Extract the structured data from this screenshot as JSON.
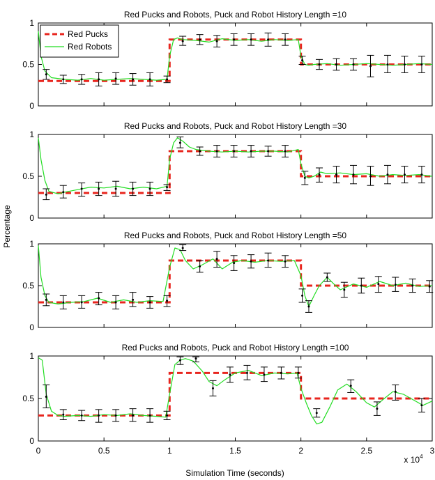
{
  "figure": {
    "ylabel": "Percentage",
    "xlabel": "Simulation Time (seconds)",
    "x_multiplier": "x 10",
    "x_multiplier_exp": "4"
  },
  "legend": {
    "placement": "top-left of first panel",
    "entries": [
      {
        "label": "Red Pucks",
        "color": "#e8251e",
        "style": "dashed"
      },
      {
        "label": "Red Robots",
        "color": "#22dd22",
        "style": "solid"
      }
    ]
  },
  "colors": {
    "pucks": "#e8251e",
    "robots": "#22dd22",
    "errorbar": "#000000"
  },
  "chart_data": [
    {
      "type": "line",
      "title": "Red Pucks and Robots, Puck and Robot History Length =10",
      "xlim": [
        0,
        3
      ],
      "ylim": [
        0,
        1
      ],
      "xticks": [
        0,
        0.5,
        1,
        1.5,
        2,
        2.5,
        3
      ],
      "xtick_labels": [
        "0",
        "0.5",
        "1",
        "1.5",
        "2",
        "2.5",
        "3"
      ],
      "yticks": [
        0,
        0.5,
        1
      ],
      "ytick_labels": [
        "0",
        "0.5",
        "1"
      ],
      "grid": false,
      "pucks": {
        "name": "Red Pucks",
        "x": [
          0,
          1,
          1,
          2,
          2,
          3
        ],
        "y": [
          0.3,
          0.3,
          0.8,
          0.8,
          0.5,
          0.5
        ]
      },
      "robots": {
        "name": "Red Robots",
        "x": [
          0,
          0.02,
          0.05,
          0.1,
          0.2,
          0.3,
          0.4,
          0.5,
          0.6,
          0.7,
          0.8,
          0.9,
          0.98,
          1.0,
          1.03,
          1.06,
          1.1,
          1.2,
          1.3,
          1.4,
          1.5,
          1.6,
          1.7,
          1.8,
          1.9,
          1.98,
          2.0,
          2.03,
          2.06,
          2.1,
          2.2,
          2.3,
          2.4,
          2.5,
          2.6,
          2.7,
          2.8,
          2.9,
          3.0
        ],
        "y": [
          0.9,
          0.6,
          0.42,
          0.34,
          0.32,
          0.31,
          0.33,
          0.31,
          0.32,
          0.33,
          0.32,
          0.31,
          0.32,
          0.6,
          0.8,
          0.82,
          0.8,
          0.79,
          0.77,
          0.81,
          0.79,
          0.8,
          0.78,
          0.8,
          0.79,
          0.8,
          0.6,
          0.5,
          0.49,
          0.5,
          0.51,
          0.49,
          0.5,
          0.51,
          0.5,
          0.49,
          0.5,
          0.51,
          0.5
        ]
      },
      "errorbars": [
        {
          "x": 0.06,
          "y": 0.38,
          "lo": 0.32,
          "hi": 0.44
        },
        {
          "x": 0.19,
          "y": 0.32,
          "lo": 0.27,
          "hi": 0.37
        },
        {
          "x": 0.33,
          "y": 0.32,
          "lo": 0.26,
          "hi": 0.38
        },
        {
          "x": 0.46,
          "y": 0.32,
          "lo": 0.24,
          "hi": 0.4
        },
        {
          "x": 0.59,
          "y": 0.33,
          "lo": 0.26,
          "hi": 0.4
        },
        {
          "x": 0.72,
          "y": 0.32,
          "lo": 0.25,
          "hi": 0.39
        },
        {
          "x": 0.85,
          "y": 0.32,
          "lo": 0.24,
          "hi": 0.4
        },
        {
          "x": 0.98,
          "y": 0.32,
          "lo": 0.28,
          "hi": 0.36
        },
        {
          "x": 1.1,
          "y": 0.78,
          "lo": 0.73,
          "hi": 0.84
        },
        {
          "x": 1.23,
          "y": 0.8,
          "lo": 0.74,
          "hi": 0.86
        },
        {
          "x": 1.36,
          "y": 0.78,
          "lo": 0.71,
          "hi": 0.85
        },
        {
          "x": 1.49,
          "y": 0.8,
          "lo": 0.73,
          "hi": 0.87
        },
        {
          "x": 1.62,
          "y": 0.8,
          "lo": 0.73,
          "hi": 0.87
        },
        {
          "x": 1.75,
          "y": 0.8,
          "lo": 0.72,
          "hi": 0.88
        },
        {
          "x": 1.88,
          "y": 0.8,
          "lo": 0.73,
          "hi": 0.87
        },
        {
          "x": 2.01,
          "y": 0.55,
          "lo": 0.5,
          "hi": 0.6
        },
        {
          "x": 2.14,
          "y": 0.5,
          "lo": 0.44,
          "hi": 0.56
        },
        {
          "x": 2.27,
          "y": 0.5,
          "lo": 0.43,
          "hi": 0.57
        },
        {
          "x": 2.4,
          "y": 0.5,
          "lo": 0.43,
          "hi": 0.57
        },
        {
          "x": 2.53,
          "y": 0.48,
          "lo": 0.35,
          "hi": 0.61
        },
        {
          "x": 2.66,
          "y": 0.5,
          "lo": 0.4,
          "hi": 0.61
        },
        {
          "x": 2.79,
          "y": 0.5,
          "lo": 0.4,
          "hi": 0.6
        },
        {
          "x": 2.92,
          "y": 0.5,
          "lo": 0.4,
          "hi": 0.6
        }
      ]
    },
    {
      "type": "line",
      "title": "Red Pucks and Robots, Puck and Robot History Length =30",
      "xlim": [
        0,
        3
      ],
      "ylim": [
        0,
        1
      ],
      "xticks": [
        0,
        0.5,
        1,
        1.5,
        2,
        2.5,
        3
      ],
      "xtick_labels": [
        "0",
        "0.5",
        "1",
        "1.5",
        "2",
        "2.5",
        "3"
      ],
      "yticks": [
        0,
        0.5,
        1
      ],
      "ytick_labels": [
        "0",
        "0.5",
        "1"
      ],
      "grid": false,
      "pucks": {
        "name": "Red Pucks",
        "x": [
          0,
          1,
          1,
          2,
          2,
          3
        ],
        "y": [
          0.3,
          0.3,
          0.8,
          0.8,
          0.5,
          0.5
        ]
      },
      "robots": {
        "name": "Red Robots",
        "x": [
          0,
          0.02,
          0.05,
          0.08,
          0.15,
          0.2,
          0.3,
          0.4,
          0.5,
          0.6,
          0.7,
          0.8,
          0.9,
          0.98,
          1.0,
          1.03,
          1.06,
          1.1,
          1.15,
          1.2,
          1.3,
          1.4,
          1.5,
          1.6,
          1.7,
          1.8,
          1.9,
          1.98,
          2.0,
          2.03,
          2.06,
          2.1,
          2.15,
          2.2,
          2.3,
          2.4,
          2.5,
          2.6,
          2.7,
          2.8,
          2.9,
          3.0
        ],
        "y": [
          0.96,
          0.7,
          0.45,
          0.32,
          0.29,
          0.31,
          0.34,
          0.37,
          0.36,
          0.38,
          0.35,
          0.37,
          0.35,
          0.38,
          0.7,
          0.9,
          0.96,
          0.92,
          0.85,
          0.82,
          0.8,
          0.79,
          0.8,
          0.79,
          0.8,
          0.8,
          0.79,
          0.82,
          0.65,
          0.5,
          0.48,
          0.5,
          0.55,
          0.53,
          0.54,
          0.52,
          0.53,
          0.5,
          0.52,
          0.51,
          0.52,
          0.5
        ]
      },
      "errorbars": [
        {
          "x": 0.06,
          "y": 0.28,
          "lo": 0.22,
          "hi": 0.35
        },
        {
          "x": 0.19,
          "y": 0.31,
          "lo": 0.24,
          "hi": 0.39
        },
        {
          "x": 0.33,
          "y": 0.35,
          "lo": 0.26,
          "hi": 0.42
        },
        {
          "x": 0.46,
          "y": 0.35,
          "lo": 0.27,
          "hi": 0.43
        },
        {
          "x": 0.59,
          "y": 0.35,
          "lo": 0.26,
          "hi": 0.44
        },
        {
          "x": 0.72,
          "y": 0.35,
          "lo": 0.27,
          "hi": 0.43
        },
        {
          "x": 0.85,
          "y": 0.35,
          "lo": 0.27,
          "hi": 0.43
        },
        {
          "x": 0.98,
          "y": 0.37,
          "lo": 0.33,
          "hi": 0.4
        },
        {
          "x": 1.08,
          "y": 0.9,
          "lo": 0.84,
          "hi": 0.97
        },
        {
          "x": 1.23,
          "y": 0.8,
          "lo": 0.75,
          "hi": 0.85
        },
        {
          "x": 1.36,
          "y": 0.8,
          "lo": 0.73,
          "hi": 0.87
        },
        {
          "x": 1.49,
          "y": 0.8,
          "lo": 0.73,
          "hi": 0.87
        },
        {
          "x": 1.62,
          "y": 0.8,
          "lo": 0.73,
          "hi": 0.87
        },
        {
          "x": 1.75,
          "y": 0.8,
          "lo": 0.74,
          "hi": 0.86
        },
        {
          "x": 1.88,
          "y": 0.8,
          "lo": 0.73,
          "hi": 0.87
        },
        {
          "x": 2.03,
          "y": 0.48,
          "lo": 0.4,
          "hi": 0.56
        },
        {
          "x": 2.14,
          "y": 0.52,
          "lo": 0.43,
          "hi": 0.6
        },
        {
          "x": 2.27,
          "y": 0.52,
          "lo": 0.42,
          "hi": 0.62
        },
        {
          "x": 2.4,
          "y": 0.52,
          "lo": 0.41,
          "hi": 0.63
        },
        {
          "x": 2.53,
          "y": 0.5,
          "lo": 0.39,
          "hi": 0.62
        },
        {
          "x": 2.66,
          "y": 0.52,
          "lo": 0.41,
          "hi": 0.63
        },
        {
          "x": 2.79,
          "y": 0.52,
          "lo": 0.42,
          "hi": 0.62
        },
        {
          "x": 2.92,
          "y": 0.52,
          "lo": 0.42,
          "hi": 0.62
        }
      ]
    },
    {
      "type": "line",
      "title": "Red Pucks and Robots, Puck and Robot History Length =50",
      "xlim": [
        0,
        3
      ],
      "ylim": [
        0,
        1
      ],
      "xticks": [
        0,
        0.5,
        1,
        1.5,
        2,
        2.5,
        3
      ],
      "xtick_labels": [
        "0",
        "0.5",
        "1",
        "1.5",
        "2",
        "2.5",
        "3"
      ],
      "yticks": [
        0,
        0.5,
        1
      ],
      "ytick_labels": [
        "0",
        "0.5",
        "1"
      ],
      "grid": false,
      "pucks": {
        "name": "Red Pucks",
        "x": [
          0,
          1,
          1,
          2,
          2,
          3
        ],
        "y": [
          0.3,
          0.3,
          0.8,
          0.8,
          0.5,
          0.5
        ]
      },
      "robots": {
        "name": "Red Robots",
        "x": [
          0,
          0.02,
          0.05,
          0.08,
          0.15,
          0.25,
          0.35,
          0.45,
          0.55,
          0.65,
          0.75,
          0.85,
          0.95,
          1.0,
          1.04,
          1.08,
          1.12,
          1.18,
          1.25,
          1.33,
          1.4,
          1.48,
          1.55,
          1.65,
          1.75,
          1.85,
          1.95,
          2.0,
          2.03,
          2.06,
          2.1,
          2.14,
          2.2,
          2.25,
          2.3,
          2.4,
          2.5,
          2.6,
          2.7,
          2.8,
          2.9,
          3.0
        ],
        "y": [
          0.98,
          0.6,
          0.38,
          0.3,
          0.28,
          0.3,
          0.31,
          0.35,
          0.3,
          0.33,
          0.3,
          0.32,
          0.31,
          0.72,
          0.95,
          0.93,
          0.8,
          0.7,
          0.75,
          0.82,
          0.7,
          0.78,
          0.8,
          0.78,
          0.8,
          0.79,
          0.8,
          0.62,
          0.38,
          0.25,
          0.38,
          0.5,
          0.6,
          0.52,
          0.45,
          0.52,
          0.48,
          0.55,
          0.5,
          0.53,
          0.49,
          0.5
        ]
      },
      "errorbars": [
        {
          "x": 0.06,
          "y": 0.33,
          "lo": 0.26,
          "hi": 0.4
        },
        {
          "x": 0.19,
          "y": 0.3,
          "lo": 0.22,
          "hi": 0.38
        },
        {
          "x": 0.33,
          "y": 0.3,
          "lo": 0.23,
          "hi": 0.38
        },
        {
          "x": 0.46,
          "y": 0.35,
          "lo": 0.27,
          "hi": 0.42
        },
        {
          "x": 0.59,
          "y": 0.3,
          "lo": 0.22,
          "hi": 0.38
        },
        {
          "x": 0.72,
          "y": 0.33,
          "lo": 0.25,
          "hi": 0.42
        },
        {
          "x": 0.85,
          "y": 0.3,
          "lo": 0.23,
          "hi": 0.37
        },
        {
          "x": 0.98,
          "y": 0.32,
          "lo": 0.25,
          "hi": 0.38
        },
        {
          "x": 1.1,
          "y": 0.95,
          "lo": 0.92,
          "hi": 0.99
        },
        {
          "x": 1.23,
          "y": 0.73,
          "lo": 0.66,
          "hi": 0.8
        },
        {
          "x": 1.36,
          "y": 0.82,
          "lo": 0.72,
          "hi": 0.91
        },
        {
          "x": 1.49,
          "y": 0.77,
          "lo": 0.68,
          "hi": 0.86
        },
        {
          "x": 1.62,
          "y": 0.79,
          "lo": 0.71,
          "hi": 0.87
        },
        {
          "x": 1.75,
          "y": 0.8,
          "lo": 0.72,
          "hi": 0.89
        },
        {
          "x": 1.88,
          "y": 0.79,
          "lo": 0.72,
          "hi": 0.86
        },
        {
          "x": 2.01,
          "y": 0.38,
          "lo": 0.3,
          "hi": 0.46
        },
        {
          "x": 2.06,
          "y": 0.25,
          "lo": 0.18,
          "hi": 0.32
        },
        {
          "x": 2.2,
          "y": 0.6,
          "lo": 0.55,
          "hi": 0.65
        },
        {
          "x": 2.33,
          "y": 0.45,
          "lo": 0.36,
          "hi": 0.54
        },
        {
          "x": 2.46,
          "y": 0.5,
          "lo": 0.41,
          "hi": 0.59
        },
        {
          "x": 2.59,
          "y": 0.52,
          "lo": 0.42,
          "hi": 0.61
        },
        {
          "x": 2.72,
          "y": 0.51,
          "lo": 0.43,
          "hi": 0.6
        },
        {
          "x": 2.85,
          "y": 0.5,
          "lo": 0.42,
          "hi": 0.58
        },
        {
          "x": 2.98,
          "y": 0.49,
          "lo": 0.42,
          "hi": 0.56
        }
      ]
    },
    {
      "type": "line",
      "title": "Red Pucks and Robots, Puck and Robot History Length =100",
      "xlim": [
        0,
        3
      ],
      "ylim": [
        0,
        1
      ],
      "xticks": [
        0,
        0.5,
        1,
        1.5,
        2,
        2.5,
        3
      ],
      "xtick_labels": [
        "0",
        "0.5",
        "1",
        "1.5",
        "2",
        "2.5",
        "3"
      ],
      "yticks": [
        0,
        0.5,
        1
      ],
      "ytick_labels": [
        "0",
        "0.5",
        "1"
      ],
      "grid": false,
      "pucks": {
        "name": "Red Pucks",
        "x": [
          0,
          1,
          1,
          2,
          2,
          3
        ],
        "y": [
          0.3,
          0.3,
          0.8,
          0.8,
          0.5,
          0.5
        ]
      },
      "robots": {
        "name": "Red Robots",
        "x": [
          0,
          0.03,
          0.06,
          0.1,
          0.15,
          0.2,
          0.3,
          0.4,
          0.5,
          0.6,
          0.7,
          0.8,
          0.9,
          0.97,
          1.0,
          1.04,
          1.08,
          1.12,
          1.18,
          1.25,
          1.3,
          1.36,
          1.42,
          1.5,
          1.6,
          1.7,
          1.8,
          1.9,
          1.97,
          2.0,
          2.04,
          2.08,
          2.12,
          2.16,
          2.22,
          2.28,
          2.35,
          2.42,
          2.5,
          2.56,
          2.62,
          2.7,
          2.78,
          2.86,
          2.93,
          3.0
        ],
        "y": [
          0.98,
          0.95,
          0.55,
          0.35,
          0.3,
          0.29,
          0.3,
          0.29,
          0.31,
          0.3,
          0.32,
          0.3,
          0.29,
          0.28,
          0.55,
          0.9,
          0.95,
          0.97,
          0.94,
          0.82,
          0.7,
          0.65,
          0.72,
          0.8,
          0.83,
          0.77,
          0.8,
          0.79,
          0.8,
          0.62,
          0.45,
          0.3,
          0.2,
          0.22,
          0.4,
          0.6,
          0.67,
          0.58,
          0.45,
          0.4,
          0.48,
          0.58,
          0.55,
          0.48,
          0.42,
          0.47
        ]
      },
      "errorbars": [
        {
          "x": 0.06,
          "y": 0.52,
          "lo": 0.39,
          "hi": 0.66
        },
        {
          "x": 0.19,
          "y": 0.31,
          "lo": 0.25,
          "hi": 0.37
        },
        {
          "x": 0.33,
          "y": 0.3,
          "lo": 0.24,
          "hi": 0.36
        },
        {
          "x": 0.46,
          "y": 0.3,
          "lo": 0.22,
          "hi": 0.37
        },
        {
          "x": 0.59,
          "y": 0.3,
          "lo": 0.23,
          "hi": 0.37
        },
        {
          "x": 0.72,
          "y": 0.3,
          "lo": 0.23,
          "hi": 0.38
        },
        {
          "x": 0.85,
          "y": 0.3,
          "lo": 0.22,
          "hi": 0.38
        },
        {
          "x": 0.98,
          "y": 0.3,
          "lo": 0.25,
          "hi": 0.35
        },
        {
          "x": 1.08,
          "y": 0.95,
          "lo": 0.9,
          "hi": 0.99
        },
        {
          "x": 1.2,
          "y": 0.97,
          "lo": 0.93,
          "hi": 0.99
        },
        {
          "x": 1.33,
          "y": 0.62,
          "lo": 0.53,
          "hi": 0.71
        },
        {
          "x": 1.46,
          "y": 0.78,
          "lo": 0.69,
          "hi": 0.87
        },
        {
          "x": 1.59,
          "y": 0.8,
          "lo": 0.72,
          "hi": 0.89
        },
        {
          "x": 1.72,
          "y": 0.78,
          "lo": 0.7,
          "hi": 0.87
        },
        {
          "x": 1.85,
          "y": 0.8,
          "lo": 0.73,
          "hi": 0.87
        },
        {
          "x": 1.98,
          "y": 0.8,
          "lo": 0.74,
          "hi": 0.87
        },
        {
          "x": 2.12,
          "y": 0.33,
          "lo": 0.28,
          "hi": 0.38
        },
        {
          "x": 2.38,
          "y": 0.65,
          "lo": 0.57,
          "hi": 0.72
        },
        {
          "x": 2.58,
          "y": 0.38,
          "lo": 0.3,
          "hi": 0.46
        },
        {
          "x": 2.72,
          "y": 0.58,
          "lo": 0.48,
          "hi": 0.66
        },
        {
          "x": 2.92,
          "y": 0.42,
          "lo": 0.34,
          "hi": 0.5
        }
      ]
    }
  ]
}
